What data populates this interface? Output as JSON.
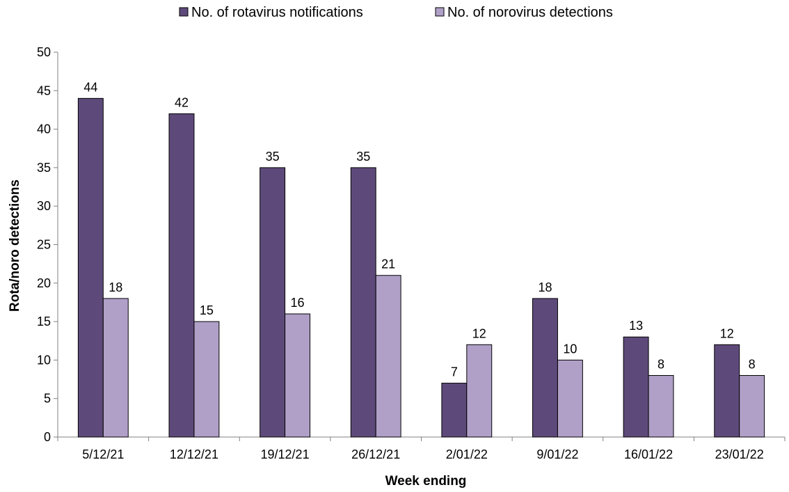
{
  "chart_data": {
    "type": "bar",
    "categories": [
      "5/12/21",
      "12/12/21",
      "19/12/21",
      "26/12/21",
      "2/01/22",
      "9/01/22",
      "16/01/22",
      "23/01/22"
    ],
    "series": [
      {
        "name": "No. of rotavirus notifications",
        "values": [
          44,
          42,
          35,
          35,
          7,
          18,
          13,
          12
        ],
        "color": "#5e4a7a"
      },
      {
        "name": "No. of norovirus detections",
        "values": [
          18,
          15,
          16,
          21,
          12,
          10,
          8,
          8
        ],
        "color": "#b0a0c8"
      }
    ],
    "title": "",
    "xlabel": "Week ending",
    "ylabel": "Rota/noro detections",
    "ylim": [
      0,
      50
    ],
    "yticks": [
      0,
      5,
      10,
      15,
      20,
      25,
      30,
      35,
      40,
      45,
      50
    ],
    "grid": false,
    "legend_position": "top-center",
    "data_labels": true
  }
}
